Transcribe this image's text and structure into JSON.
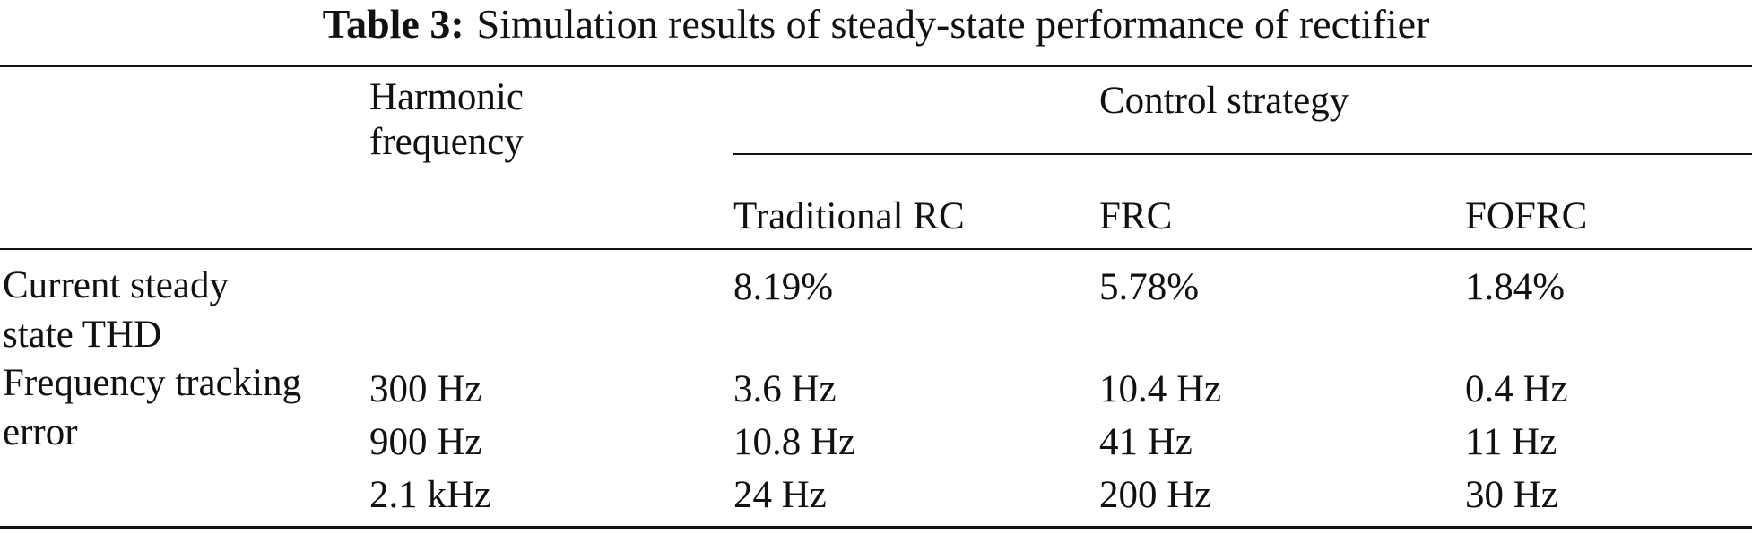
{
  "caption": {
    "label": "Table 3:",
    "text": "Simulation results of steady-state performance of rectifier"
  },
  "table": {
    "header": {
      "harmonic_frequency": [
        "Harmonic",
        "frequency"
      ],
      "group": "Control strategy",
      "strategies": [
        "Traditional RC",
        "FRC",
        "FOFRC"
      ]
    },
    "rows": [
      {
        "label": [
          "Current steady",
          "state THD"
        ],
        "frequency": "",
        "values": [
          "8.19%",
          "5.78%",
          "1.84%"
        ]
      },
      {
        "label": [
          "Frequency tracking",
          "error"
        ],
        "frequency": "300 Hz",
        "values": [
          "3.6 Hz",
          "10.4 Hz",
          "0.4 Hz"
        ]
      },
      {
        "label": [
          "",
          ""
        ],
        "frequency": "900 Hz",
        "values": [
          "10.8 Hz",
          "41 Hz",
          "11 Hz"
        ]
      },
      {
        "label": [
          "",
          ""
        ],
        "frequency": "2.1 kHz",
        "values": [
          "24 Hz",
          "200 Hz",
          "30 Hz"
        ]
      }
    ]
  }
}
